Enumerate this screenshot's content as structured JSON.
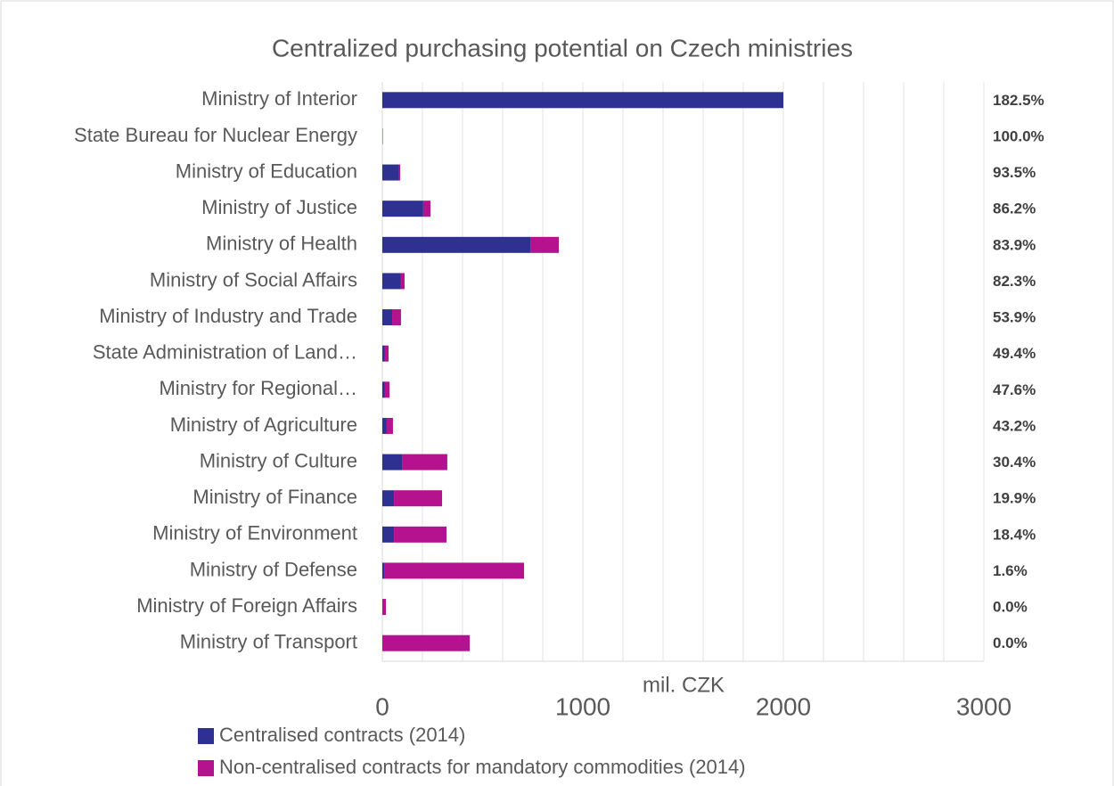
{
  "chart_data": {
    "type": "bar",
    "orientation": "horizontal",
    "stacked": true,
    "title": "Centralized purchasing potential on Czech ministries",
    "x_label": "mil. CZK",
    "categories": [
      "Ministry of Interior",
      "State Bureau for Nuclear Energy",
      "Ministry of Education",
      "Ministry of Justice",
      "Ministry of Health",
      "Ministry of Social Affairs",
      "Ministry of Industry and Trade",
      "State Administration of Land…",
      "Ministry for Regional…",
      "Ministry of Agriculture",
      "Ministry of Culture",
      "Ministry of Finance",
      "Ministry of Environment",
      "Ministry of Defense",
      "Ministry of Foreign Affairs",
      "Ministry of Transport"
    ],
    "series": [
      {
        "name": "Centralised contracts (2014)",
        "color": "#2e3192",
        "values": [
          2000,
          2,
          84,
          204,
          738,
          93,
          49,
          13,
          13,
          22,
          98,
          58,
          58,
          9,
          0,
          0
        ]
      },
      {
        "name": "Non-centralised contracts for mandatory commodities (2014)",
        "color": "#b5128f",
        "values": [
          0,
          0,
          5,
          36,
          142,
          18,
          44,
          18,
          23,
          31,
          226,
          240,
          262,
          698,
          18,
          436
        ]
      }
    ],
    "annotations": [
      "182.5%",
      "100.0%",
      "93.5%",
      "86.2%",
      "83.9%",
      "82.3%",
      "53.9%",
      "49.4%",
      "47.6%",
      "43.2%",
      "30.4%",
      "19.9%",
      "18.4%",
      "1.6%",
      "0.0%",
      "0.0%"
    ],
    "xlim": [
      0,
      3000
    ],
    "xticks": [
      0,
      1000,
      2000,
      3000
    ],
    "xgrid": [
      0,
      200,
      400,
      600,
      800,
      1000,
      1200,
      1400,
      1600,
      1800,
      2000,
      2200,
      2400,
      2600,
      2800,
      3000
    ],
    "grid": true,
    "legend": "bottom"
  }
}
